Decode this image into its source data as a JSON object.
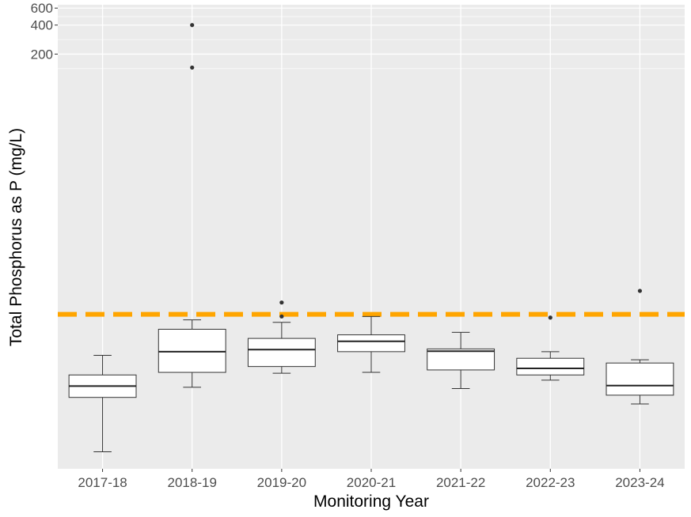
{
  "chart_data": {
    "type": "boxplot",
    "xlabel": "Monitoring Year",
    "ylabel": "Total Phosphorus as P (mg/L)",
    "y_scale": "log10",
    "ylim": [
      0.01,
      650
    ],
    "y_ticks": [
      200,
      400,
      600
    ],
    "y_tick_labels": [
      "200",
      "400",
      "600"
    ],
    "grid": true,
    "reference_line": {
      "value": 0.4,
      "color": "#FFA500",
      "style": "dashed"
    },
    "categories": [
      "2017-18",
      "2018-19",
      "2019-20",
      "2020-21",
      "2021-22",
      "2022-23",
      "2023-24"
    ],
    "boxes": [
      {
        "category": "2017-18",
        "whisker_low": 0.015,
        "q1": 0.055,
        "median": 0.072,
        "q3": 0.094,
        "whisker_high": 0.15,
        "outliers": []
      },
      {
        "category": "2018-19",
        "whisker_low": 0.07,
        "q1": 0.1,
        "median": 0.164,
        "q3": 0.28,
        "whisker_high": 0.35,
        "outliers": [
          145,
          400
        ]
      },
      {
        "category": "2019-20",
        "whisker_low": 0.098,
        "q1": 0.115,
        "median": 0.172,
        "q3": 0.225,
        "whisker_high": 0.33,
        "outliers": [
          0.38,
          0.53
        ]
      },
      {
        "category": "2020-21",
        "whisker_low": 0.1,
        "q1": 0.164,
        "median": 0.21,
        "q3": 0.245,
        "whisker_high": 0.38,
        "outliers": []
      },
      {
        "category": "2021-22",
        "whisker_low": 0.068,
        "q1": 0.106,
        "median": 0.166,
        "q3": 0.175,
        "whisker_high": 0.26,
        "outliers": []
      },
      {
        "category": "2022-23",
        "whisker_low": 0.083,
        "q1": 0.094,
        "median": 0.11,
        "q3": 0.14,
        "whisker_high": 0.164,
        "outliers": [
          0.37
        ]
      },
      {
        "category": "2023-24",
        "whisker_low": 0.047,
        "q1": 0.058,
        "median": 0.073,
        "q3": 0.125,
        "whisker_high": 0.135,
        "outliers": [
          0.7
        ]
      }
    ]
  }
}
